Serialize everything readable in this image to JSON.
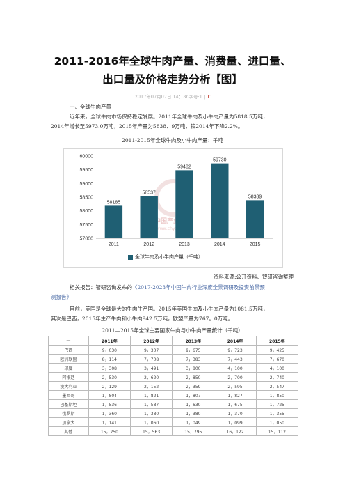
{
  "article": {
    "title_line1": "2011-2016年全球牛肉产量、消费量、进口量、",
    "title_line2": "出口量及价格走势分析【图】",
    "meta": "2017年07月07日 14：36字号:T | ",
    "meta_mark": "T",
    "section1_heading": "一、全球牛肉产量",
    "para1_line1": "近年来，全球牛肉市场保持稳定发展。2011年全球牛肉及小牛肉产量为5818.5万吨，",
    "para1_line2": "2014年增长至5973.0万吨，2015年产量为5838．9万吨，较2014年下降2.2%。",
    "chart_caption": "2011-2015年全球牛肉及小牛肉产量：千吨",
    "source": "资料来源:公开资料、智研咨询整理",
    "related_prefix": "相关报告：智研咨询发布的",
    "related_link_line1": "《2017-2023年中国牛肉行业深度全景调研及投资前景预",
    "related_link_line2": "测报告》",
    "para2_line1": "目前，美国是全球最大的牛肉生产国。2015年美国牛肉及小牛肉产量为1081.5万吨，",
    "para2_line2": "其次是巴西，2015年生产牛肉和小牛肉942.5万吨，欧盟产量为767。0万吨。",
    "table_caption": "2011—2015年全球主要国家牛肉与小牛肉产量统计（千吨）"
  },
  "chart_data": {
    "type": "bar",
    "categories": [
      "2011",
      "2012",
      "2013",
      "2014",
      "2015"
    ],
    "values": [
      58185,
      58537,
      59482,
      59730,
      58389
    ],
    "ylim": [
      57000,
      60000
    ],
    "yticks": [
      57000,
      57500,
      58000,
      58500,
      59000,
      59500,
      60000
    ],
    "series_name": "全球牛肉及小牛肉产量（千吨）",
    "bar_color": "#1f5f73",
    "watermark": "中国产业信息 www.chyxx.com",
    "grid": false,
    "legend_position": "bottom"
  },
  "table": {
    "headers": [
      "—",
      "2011年",
      "2012年",
      "2013年",
      "2014年",
      "2015年"
    ],
    "rows": [
      [
        "巴西",
        "9，030",
        "9，307",
        "9，675",
        "9，723",
        "9，425"
      ],
      [
        "欧洲联盟",
        "8，114",
        "7，708",
        "7，383",
        "7，443",
        "7，670"
      ],
      [
        "印度",
        "3，308",
        "3，491",
        "3，800",
        "4，100",
        "4，100"
      ],
      [
        "阿根廷",
        "2，530",
        "2，620",
        "2，850",
        "2，700",
        "2，740"
      ],
      [
        "澳大利亚",
        "2，129",
        "2，152",
        "2，359",
        "2，595",
        "2，547"
      ],
      [
        "墨西哥",
        "1，804",
        "1，821",
        "1，807",
        "1，827",
        "1，850"
      ],
      [
        "巴基斯坦",
        "1，536",
        "1，587",
        "1，630",
        "1，675",
        "1，725"
      ],
      [
        "俄罗斯",
        "1，360",
        "1，380",
        "1，380",
        "1，370",
        "1，355"
      ],
      [
        "加拿大",
        "1，141",
        "1，060",
        "1，049",
        "1，099",
        "1，050"
      ],
      [
        "其他",
        "15，250",
        "15，563",
        "15，795",
        "16，122",
        "15，112"
      ]
    ]
  }
}
